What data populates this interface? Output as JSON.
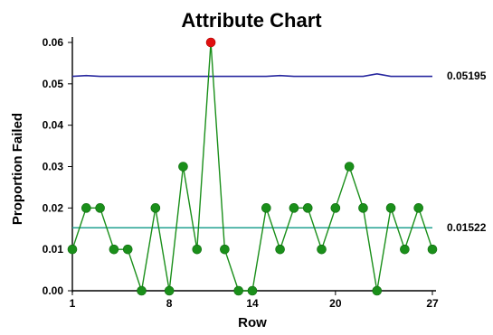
{
  "chart_data": {
    "type": "line",
    "title": "Attribute Chart",
    "xlabel": "Row",
    "ylabel": "Proportion Failed",
    "xlim": [
      1,
      27
    ],
    "ylim": [
      0,
      0.06
    ],
    "x_ticks": [
      1,
      8,
      14,
      20,
      27
    ],
    "x_tick_labels": [
      "1",
      "8",
      "14",
      "20",
      "27"
    ],
    "y_ticks": [
      0,
      0.01,
      0.02,
      0.03,
      0.04,
      0.05,
      0.06
    ],
    "y_tick_labels": [
      "0.00",
      "0.01",
      "0.02",
      "0.03",
      "0.04",
      "0.05",
      "0.06"
    ],
    "grid": false,
    "series": [
      {
        "x": [
          1,
          2,
          3,
          4,
          5,
          6,
          7,
          8,
          9,
          10,
          11,
          12,
          13,
          14,
          15,
          16,
          17,
          18,
          19,
          20,
          21,
          22,
          23,
          24,
          25,
          26,
          27
        ],
        "values": [
          0.01,
          0.02,
          0.02,
          0.01,
          0.01,
          0.0,
          0.02,
          0.0,
          0.03,
          0.01,
          0.06,
          0.01,
          0.0,
          0.0,
          0.02,
          0.01,
          0.02,
          0.02,
          0.01,
          0.02,
          0.03,
          0.02,
          0.0,
          0.02,
          0.01,
          0.02,
          0.01
        ],
        "color": "#1a8f1a",
        "out_of_control_rows": [
          11
        ],
        "out_of_control_color": "#e01010"
      }
    ],
    "upper_control_limit": {
      "label": "0.05195",
      "value": 0.05195,
      "x": [
        1,
        2,
        3,
        4,
        5,
        6,
        7,
        8,
        9,
        10,
        11,
        12,
        13,
        14,
        15,
        16,
        17,
        18,
        19,
        20,
        21,
        22,
        23,
        24,
        25,
        26,
        27
      ],
      "values": [
        0.0518,
        0.052,
        0.0518,
        0.0518,
        0.0518,
        0.0518,
        0.0518,
        0.0518,
        0.0518,
        0.0518,
        0.0518,
        0.0518,
        0.0518,
        0.0518,
        0.0518,
        0.052,
        0.0518,
        0.0518,
        0.0518,
        0.0518,
        0.0518,
        0.0518,
        0.0524,
        0.0518,
        0.0518,
        0.0518,
        0.0518
      ],
      "color": "#2a2aa0"
    },
    "center_line": {
      "label": "0.01522",
      "value": 0.01522,
      "color": "#20a090"
    }
  }
}
